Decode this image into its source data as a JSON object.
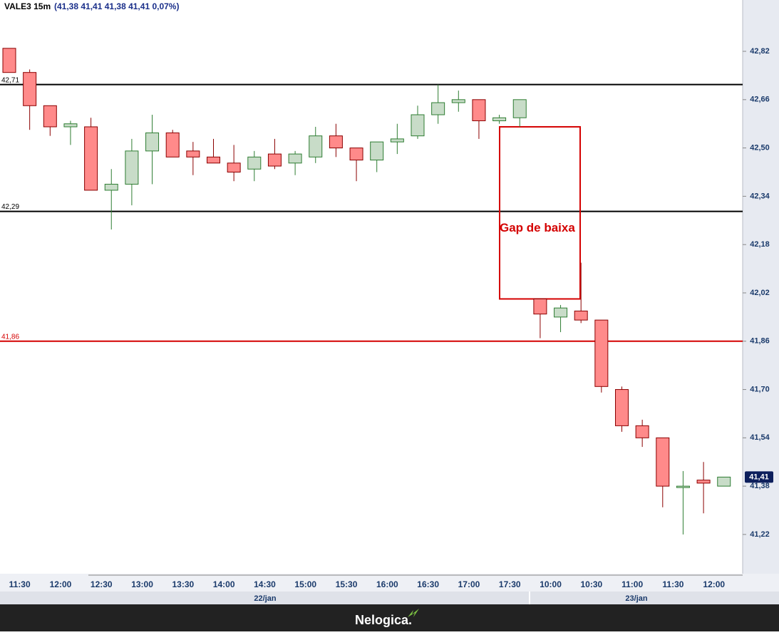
{
  "chart_data": {
    "type": "candlestick",
    "symbol": "VALE3 15m",
    "quote": "(41,38  41,41  41,38  41,41  0,07%)",
    "categories": [
      null,
      "11:30",
      null,
      "12:00",
      null,
      "12:30",
      null,
      "13:00",
      null,
      "13:30",
      null,
      "14:00",
      null,
      "14:30",
      null,
      "15:00",
      null,
      "15:30",
      null,
      "16:00",
      null,
      "16:30",
      null,
      "17:00",
      null,
      "17:30",
      null,
      "10:00",
      null,
      "10:30",
      null,
      "11:00",
      null,
      "11:30",
      null,
      "12:00"
    ],
    "days": [
      "22/jan",
      "23/jan"
    ],
    "open": [
      42.83,
      42.75,
      42.64,
      42.57,
      42.57,
      42.36,
      42.38,
      42.49,
      42.55,
      42.49,
      42.47,
      42.45,
      42.43,
      42.48,
      42.45,
      42.47,
      42.54,
      42.5,
      42.46,
      42.52,
      42.54,
      42.61,
      42.65,
      42.66,
      42.59,
      42.6,
      42.0,
      41.94,
      41.96,
      41.93,
      41.7,
      41.58,
      41.54,
      41.38,
      41.4,
      41.38
    ],
    "high": [
      42.83,
      42.76,
      42.64,
      42.59,
      42.6,
      42.43,
      42.53,
      42.61,
      42.56,
      42.52,
      42.53,
      42.51,
      42.49,
      42.53,
      42.49,
      42.57,
      42.58,
      42.5,
      42.52,
      42.58,
      42.64,
      42.71,
      42.69,
      42.66,
      42.61,
      42.66,
      42.0,
      41.98,
      42.12,
      41.93,
      41.71,
      41.6,
      41.54,
      41.43,
      41.46,
      41.41
    ],
    "low": [
      42.75,
      42.56,
      42.54,
      42.51,
      42.36,
      42.23,
      42.31,
      42.38,
      42.47,
      42.41,
      42.45,
      42.39,
      42.39,
      42.43,
      42.41,
      42.45,
      42.47,
      42.39,
      42.42,
      42.48,
      42.53,
      42.58,
      42.62,
      42.53,
      42.58,
      42.57,
      41.87,
      41.89,
      41.92,
      41.69,
      41.56,
      41.51,
      41.31,
      41.22,
      41.29,
      41.38
    ],
    "close": [
      42.75,
      42.64,
      42.57,
      42.58,
      42.36,
      42.38,
      42.49,
      42.55,
      42.47,
      42.47,
      42.45,
      42.42,
      42.47,
      42.44,
      42.48,
      42.54,
      42.5,
      42.46,
      42.52,
      42.53,
      42.61,
      42.65,
      42.66,
      42.59,
      42.6,
      42.66,
      41.95,
      41.97,
      41.93,
      41.71,
      41.58,
      41.54,
      41.38,
      41.38,
      41.39,
      41.41
    ],
    "up_color": "#c8dcc8",
    "up_edge": "#2e7d32",
    "down_color": "#ff8a8a",
    "down_edge": "#8b0000",
    "ylim": [
      41.09,
      42.99
    ],
    "yticks": [
      {
        "value": 42.82,
        "label": "42,82"
      },
      {
        "value": 42.66,
        "label": "42,66"
      },
      {
        "value": 42.5,
        "label": "42,50"
      },
      {
        "value": 42.34,
        "label": "42,34"
      },
      {
        "value": 42.18,
        "label": "42,18"
      },
      {
        "value": 42.02,
        "label": "42,02"
      },
      {
        "value": 41.86,
        "label": "41,86"
      },
      {
        "value": 41.7,
        "label": "41,70"
      },
      {
        "value": 41.54,
        "label": "41,54"
      },
      {
        "value": 41.38,
        "label": "41,38"
      },
      {
        "value": 41.22,
        "label": "41,22"
      }
    ],
    "levels": [
      {
        "value": 42.71,
        "label": "42,71",
        "color": "#000000"
      },
      {
        "value": 42.29,
        "label": "42,29",
        "color": "#000000"
      },
      {
        "value": 41.86,
        "label": "41,86",
        "color": "#d40000"
      }
    ],
    "last_price": {
      "value": 41.41,
      "label": "41,41"
    },
    "gap": {
      "label": "Gap de baixa",
      "top": 42.57,
      "bottom": 42.0,
      "color": "#d40000"
    },
    "footer": "Nelogica."
  }
}
